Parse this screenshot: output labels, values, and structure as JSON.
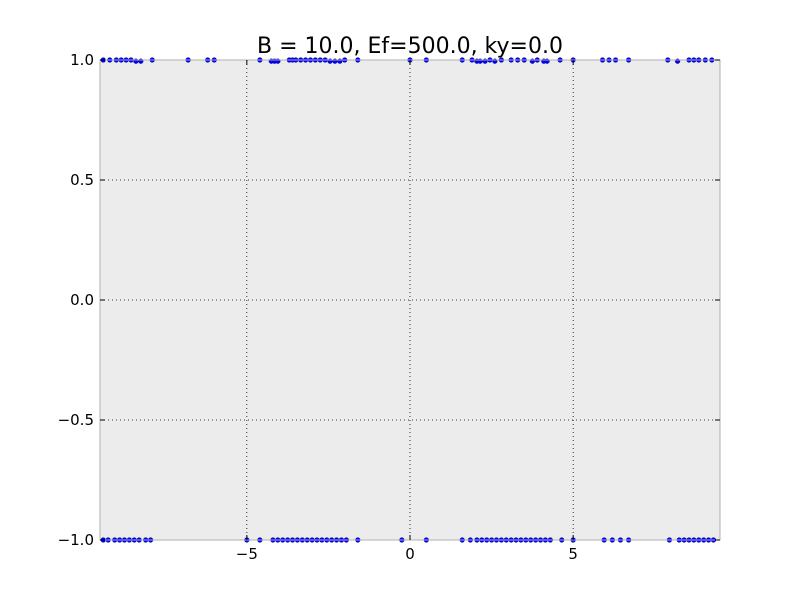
{
  "chart_data": {
    "type": "scatter",
    "title": "B = 10.0, Ef=500.0, ky=0.0",
    "xlabel": "",
    "ylabel": "",
    "xlim": [
      -9.5,
      9.5
    ],
    "ylim": [
      -1.0,
      1.0
    ],
    "x_ticks": [
      -5,
      0,
      5
    ],
    "x_tick_labels": [
      "−5",
      "0",
      "5"
    ],
    "y_ticks": [
      1.0,
      0.5,
      0.0,
      -0.5,
      -1.0
    ],
    "y_tick_labels": [
      "1.0",
      "0.5",
      "0.0",
      "−0.5",
      "−1.0"
    ],
    "grid": true,
    "grid_style": "dotted",
    "background_color": "#ececec",
    "point_color": "#0000ff",
    "series": [
      {
        "points": [
          {
            "x": -9.4,
            "y": 1.0
          },
          {
            "x": -9.2,
            "y": 1.0
          },
          {
            "x": -9.0,
            "y": 1.0
          },
          {
            "x": -8.85,
            "y": 1.0
          },
          {
            "x": -8.7,
            "y": 1.0
          },
          {
            "x": -8.55,
            "y": 1.0
          },
          {
            "x": -8.4,
            "y": 0.995
          },
          {
            "x": -8.25,
            "y": 0.995
          },
          {
            "x": -7.9,
            "y": 1.0
          },
          {
            "x": -6.8,
            "y": 1.0
          },
          {
            "x": -6.2,
            "y": 1.0
          },
          {
            "x": -6.0,
            "y": 1.0
          },
          {
            "x": -4.6,
            "y": 1.0
          },
          {
            "x": -4.25,
            "y": 0.995
          },
          {
            "x": -4.15,
            "y": 0.995
          },
          {
            "x": -4.05,
            "y": 0.995
          },
          {
            "x": -3.7,
            "y": 1.0
          },
          {
            "x": -3.6,
            "y": 1.0
          },
          {
            "x": -3.5,
            "y": 1.0
          },
          {
            "x": -3.35,
            "y": 1.0
          },
          {
            "x": -3.2,
            "y": 1.0
          },
          {
            "x": -3.05,
            "y": 1.0
          },
          {
            "x": -2.9,
            "y": 1.0
          },
          {
            "x": -2.75,
            "y": 1.0
          },
          {
            "x": -2.6,
            "y": 1.0
          },
          {
            "x": -2.45,
            "y": 0.995
          },
          {
            "x": -2.3,
            "y": 0.995
          },
          {
            "x": -2.15,
            "y": 0.995
          },
          {
            "x": -2.0,
            "y": 1.0
          },
          {
            "x": -1.6,
            "y": 1.0
          },
          {
            "x": 0.0,
            "y": 1.0
          },
          {
            "x": 0.5,
            "y": 1.0
          },
          {
            "x": 1.6,
            "y": 1.0
          },
          {
            "x": 1.9,
            "y": 1.0
          },
          {
            "x": 2.05,
            "y": 0.995
          },
          {
            "x": 2.15,
            "y": 0.995
          },
          {
            "x": 2.3,
            "y": 0.995
          },
          {
            "x": 2.45,
            "y": 1.0
          },
          {
            "x": 2.6,
            "y": 0.995
          },
          {
            "x": 2.8,
            "y": 1.0
          },
          {
            "x": 3.1,
            "y": 1.0
          },
          {
            "x": 3.3,
            "y": 1.0
          },
          {
            "x": 3.5,
            "y": 1.0
          },
          {
            "x": 3.75,
            "y": 0.995
          },
          {
            "x": 3.9,
            "y": 1.0
          },
          {
            "x": 4.1,
            "y": 0.995
          },
          {
            "x": 4.2,
            "y": 0.995
          },
          {
            "x": 4.6,
            "y": 1.0
          },
          {
            "x": 5.0,
            "y": 1.0
          },
          {
            "x": 5.9,
            "y": 1.0
          },
          {
            "x": 6.1,
            "y": 1.0
          },
          {
            "x": 6.3,
            "y": 1.0
          },
          {
            "x": 6.7,
            "y": 1.0
          },
          {
            "x": 7.9,
            "y": 1.0
          },
          {
            "x": 8.2,
            "y": 0.995
          },
          {
            "x": 8.55,
            "y": 1.0
          },
          {
            "x": 8.7,
            "y": 1.0
          },
          {
            "x": 8.85,
            "y": 1.0
          },
          {
            "x": 9.05,
            "y": 1.0
          },
          {
            "x": 9.25,
            "y": 1.0
          },
          {
            "x": -9.4,
            "y": -1.0
          },
          {
            "x": -9.25,
            "y": -1.0
          },
          {
            "x": -9.05,
            "y": -1.0
          },
          {
            "x": -8.9,
            "y": -1.0
          },
          {
            "x": -8.75,
            "y": -1.0
          },
          {
            "x": -8.6,
            "y": -1.0
          },
          {
            "x": -8.45,
            "y": -1.0
          },
          {
            "x": -8.3,
            "y": -1.0
          },
          {
            "x": -8.1,
            "y": -1.0
          },
          {
            "x": -7.95,
            "y": -1.0
          },
          {
            "x": -5.0,
            "y": -1.0
          },
          {
            "x": -4.6,
            "y": -1.0
          },
          {
            "x": -4.2,
            "y": -1.0
          },
          {
            "x": -4.05,
            "y": -1.0
          },
          {
            "x": -3.9,
            "y": -1.0
          },
          {
            "x": -3.75,
            "y": -1.0
          },
          {
            "x": -3.6,
            "y": -1.0
          },
          {
            "x": -3.45,
            "y": -1.0
          },
          {
            "x": -3.3,
            "y": -1.0
          },
          {
            "x": -3.15,
            "y": -1.0
          },
          {
            "x": -3.0,
            "y": -1.0
          },
          {
            "x": -2.85,
            "y": -1.0
          },
          {
            "x": -2.7,
            "y": -1.0
          },
          {
            "x": -2.55,
            "y": -1.0
          },
          {
            "x": -2.4,
            "y": -1.0
          },
          {
            "x": -2.25,
            "y": -1.0
          },
          {
            "x": -2.1,
            "y": -1.0
          },
          {
            "x": -1.95,
            "y": -1.0
          },
          {
            "x": -1.6,
            "y": -1.0
          },
          {
            "x": -0.25,
            "y": -1.0
          },
          {
            "x": 0.5,
            "y": -1.0
          },
          {
            "x": 1.6,
            "y": -1.0
          },
          {
            "x": 1.85,
            "y": -1.0
          },
          {
            "x": 2.05,
            "y": -1.0
          },
          {
            "x": 2.2,
            "y": -1.0
          },
          {
            "x": 2.35,
            "y": -1.0
          },
          {
            "x": 2.5,
            "y": -1.0
          },
          {
            "x": 2.65,
            "y": -1.0
          },
          {
            "x": 2.8,
            "y": -1.0
          },
          {
            "x": 2.95,
            "y": -1.0
          },
          {
            "x": 3.1,
            "y": -1.0
          },
          {
            "x": 3.25,
            "y": -1.0
          },
          {
            "x": 3.4,
            "y": -1.0
          },
          {
            "x": 3.55,
            "y": -1.0
          },
          {
            "x": 3.7,
            "y": -1.0
          },
          {
            "x": 3.85,
            "y": -1.0
          },
          {
            "x": 4.0,
            "y": -1.0
          },
          {
            "x": 4.15,
            "y": -1.0
          },
          {
            "x": 4.3,
            "y": -1.0
          },
          {
            "x": 4.65,
            "y": -1.0
          },
          {
            "x": 5.0,
            "y": -1.0
          },
          {
            "x": 5.95,
            "y": -1.0
          },
          {
            "x": 6.2,
            "y": -1.0
          },
          {
            "x": 6.45,
            "y": -1.0
          },
          {
            "x": 6.7,
            "y": -1.0
          },
          {
            "x": 7.95,
            "y": -1.0
          },
          {
            "x": 8.25,
            "y": -1.0
          },
          {
            "x": 8.4,
            "y": -1.0
          },
          {
            "x": 8.55,
            "y": -1.0
          },
          {
            "x": 8.7,
            "y": -1.0
          },
          {
            "x": 8.85,
            "y": -1.0
          },
          {
            "x": 9.0,
            "y": -1.0
          },
          {
            "x": 9.15,
            "y": -1.0
          },
          {
            "x": 9.3,
            "y": -1.0
          }
        ]
      }
    ]
  }
}
